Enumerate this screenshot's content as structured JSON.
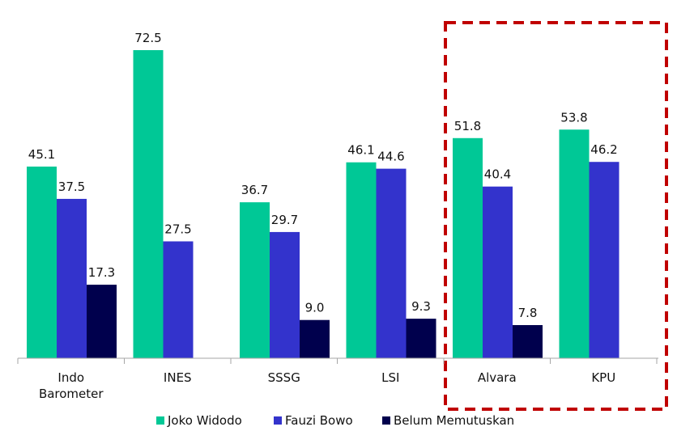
{
  "chart_data": {
    "type": "bar",
    "categories": [
      [
        "Indo",
        "Barometer"
      ],
      [
        "INES"
      ],
      [
        "SSSG"
      ],
      [
        "LSI"
      ],
      [
        "Alvara"
      ],
      [
        "KPU"
      ]
    ],
    "series": [
      {
        "name": "Joko Widodo",
        "color": "#00c896",
        "values": [
          45.1,
          72.5,
          36.7,
          46.1,
          51.8,
          53.8
        ]
      },
      {
        "name": "Fauzi Bowo",
        "color": "#3333cc",
        "values": [
          37.5,
          27.5,
          29.7,
          44.6,
          40.4,
          46.2
        ]
      },
      {
        "name": "Belum Memutuskan",
        "color": "#00004d",
        "values": [
          17.3,
          null,
          9.0,
          9.3,
          7.8,
          null
        ]
      }
    ],
    "ylim": [
      0,
      72.5
    ],
    "highlight": {
      "categories": [
        "Alvara",
        "KPU"
      ],
      "style": "dashed-box",
      "color": "#c00000"
    },
    "legend": "bottom",
    "grid": false,
    "title": "",
    "xlabel": "",
    "ylabel": ""
  }
}
